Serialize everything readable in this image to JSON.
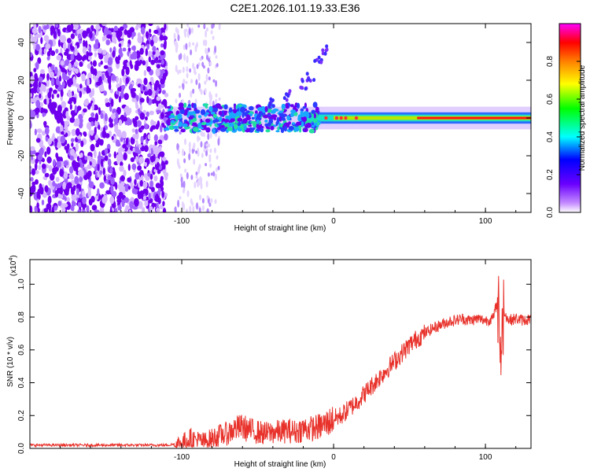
{
  "title": "C2E1.2026.101.19.33.E36",
  "colors": {
    "low": "#7b00ff",
    "line": "#e8312a",
    "axis": "#000000"
  },
  "chart_data": [
    {
      "type": "heatmap",
      "name": "spectrogram",
      "xlabel": "Height of straight line (km)",
      "ylabel": "Frequency (Hz)",
      "xlim": [
        -200,
        130
      ],
      "ylim": [
        -50,
        50
      ],
      "xticks": [
        -100,
        0,
        100
      ],
      "xtick_labels": [
        "-100",
        "0",
        "100"
      ],
      "yticks": [
        -40,
        -20,
        0,
        20,
        40
      ],
      "ytick_labels": [
        "-40",
        "-20",
        "0",
        "20",
        "40"
      ],
      "ridge": {
        "x": [
          -110,
          -100,
          -80,
          -60,
          -40,
          -20,
          -10,
          0,
          10,
          20,
          50,
          80,
          100,
          130
        ],
        "y": [
          0,
          0,
          0,
          0,
          0,
          0,
          0,
          0,
          0,
          0,
          0,
          0,
          0,
          0
        ]
      },
      "rising_branch": {
        "x": [
          -40,
          -30,
          -20,
          -15,
          -10,
          -5
        ],
        "y": [
          8,
          12,
          18,
          22,
          30,
          36
        ]
      },
      "colorbar": {
        "label": "Normalized spectral amplitude",
        "ticks": [
          0.0,
          0.2,
          0.4,
          0.6,
          0.8
        ],
        "tick_labels": [
          "0.0",
          "0.2",
          "0.4",
          "0.6",
          "0.8"
        ],
        "range": [
          0,
          1
        ]
      }
    },
    {
      "type": "line",
      "name": "snr",
      "xlabel": "Height of straight line (km)",
      "ylabel": "SNR (10 * v/v)",
      "y_multiplier": "(x10",
      "y_multiplier_exp": "4",
      "y_multiplier_close": ")",
      "xlim": [
        -200,
        130
      ],
      "ylim": [
        0,
        1.15
      ],
      "xticks": [
        -100,
        0,
        100
      ],
      "xtick_labels": [
        "-100",
        "0",
        "100"
      ],
      "yticks": [
        0.0,
        0.2,
        0.4,
        0.6,
        0.8,
        1.0
      ],
      "ytick_labels": [
        "0.0",
        "0.2",
        "0.4",
        "0.6",
        "0.8",
        "1.0"
      ],
      "series": [
        {
          "name": "SNR",
          "x": [
            -200,
            -180,
            -160,
            -140,
            -120,
            -110,
            -100,
            -95,
            -90,
            -85,
            -80,
            -75,
            -70,
            -65,
            -60,
            -55,
            -50,
            -45,
            -40,
            -35,
            -30,
            -25,
            -20,
            -15,
            -10,
            -5,
            0,
            5,
            10,
            15,
            20,
            25,
            30,
            35,
            40,
            45,
            50,
            55,
            60,
            65,
            70,
            75,
            80,
            85,
            90,
            95,
            100,
            105,
            108,
            110,
            112,
            115,
            120,
            125,
            130
          ],
          "y": [
            0.02,
            0.02,
            0.02,
            0.02,
            0.02,
            0.02,
            0.03,
            0.06,
            0.05,
            0.04,
            0.06,
            0.08,
            0.09,
            0.12,
            0.13,
            0.11,
            0.1,
            0.09,
            0.1,
            0.1,
            0.11,
            0.1,
            0.12,
            0.12,
            0.13,
            0.15,
            0.18,
            0.2,
            0.24,
            0.28,
            0.33,
            0.38,
            0.43,
            0.48,
            0.53,
            0.58,
            0.63,
            0.67,
            0.7,
            0.73,
            0.75,
            0.77,
            0.78,
            0.79,
            0.78,
            0.79,
            0.78,
            0.79,
            0.9,
            0.6,
            0.85,
            0.78,
            0.79,
            0.78,
            0.79
          ]
        }
      ]
    }
  ]
}
